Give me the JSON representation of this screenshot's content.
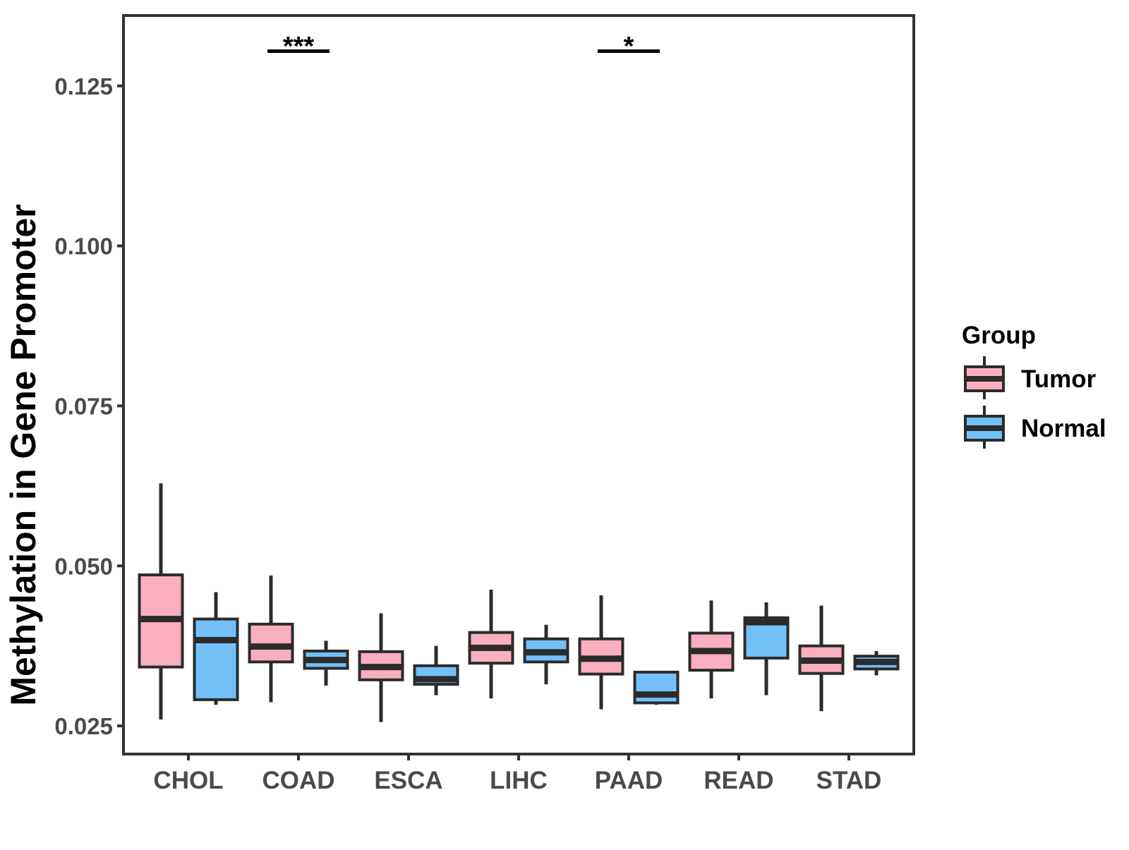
{
  "colors": {
    "background": "#FFFFFF",
    "box_stroke": "#2B2B2B",
    "panel_border": "#333333",
    "axis_text": "#4A4A4A",
    "annotation": "#000000",
    "tumor_fill": "#FAAEC0",
    "normal_fill": "#73C0F8"
  },
  "chart_data": {
    "type": "boxplot",
    "title": "",
    "xlabel": "",
    "ylabel": "Methylation in Gene Promoter",
    "categories": [
      "CHOL",
      "COAD",
      "ESCA",
      "LIHC",
      "PAAD",
      "READ",
      "STAD"
    ],
    "ylim": [
      0.0206,
      0.136
    ],
    "grid": "off",
    "y_ticks": [
      {
        "value": 0.025,
        "label": "0.025"
      },
      {
        "value": 0.05,
        "label": "0.050"
      },
      {
        "value": 0.075,
        "label": "0.075"
      },
      {
        "value": 0.1,
        "label": "0.100"
      },
      {
        "value": 0.125,
        "label": "0.125"
      }
    ],
    "box_stats_order": [
      "whisker_low",
      "q1",
      "median",
      "q3",
      "whisker_high"
    ],
    "series": [
      {
        "name": "Tumor",
        "fill": "#FAAEC0",
        "values": [
          [
            0.026,
            0.0342,
            0.0417,
            0.0486,
            0.0629
          ],
          [
            0.0287,
            0.035,
            0.0374,
            0.0409,
            0.0485
          ],
          [
            0.0256,
            0.0322,
            0.0342,
            0.0366,
            0.0426
          ],
          [
            0.0293,
            0.0348,
            0.0372,
            0.0396,
            0.0463
          ],
          [
            0.0276,
            0.0331,
            0.0355,
            0.0386,
            0.0454
          ],
          [
            0.0293,
            0.0337,
            0.0367,
            0.0395,
            0.0446
          ],
          [
            0.0273,
            0.0332,
            0.0352,
            0.0375,
            0.0438
          ]
        ]
      },
      {
        "name": "Normal",
        "fill": "#73C0F8",
        "values": [
          [
            0.0283,
            0.0291,
            0.0384,
            0.0417,
            0.0459
          ],
          [
            0.0313,
            0.034,
            0.0353,
            0.0367,
            0.0383
          ],
          [
            0.0298,
            0.0315,
            0.0323,
            0.0344,
            0.0375
          ],
          [
            0.0315,
            0.035,
            0.0365,
            0.0386,
            0.0408
          ],
          [
            0.0283,
            0.0286,
            0.0299,
            0.0334,
            0.0335
          ],
          [
            0.0298,
            0.0356,
            0.0412,
            0.0419,
            0.0443
          ],
          [
            0.0329,
            0.0339,
            0.035,
            0.0359,
            0.0367
          ]
        ]
      }
    ],
    "significance": [
      {
        "category": "COAD",
        "label": "***"
      },
      {
        "category": "PAAD",
        "label": "*"
      }
    ],
    "legend": {
      "title": "Group",
      "position": "right",
      "entries": [
        {
          "label": "Tumor",
          "fill": "#FAAEC0"
        },
        {
          "label": "Normal",
          "fill": "#73C0F8"
        }
      ]
    }
  }
}
